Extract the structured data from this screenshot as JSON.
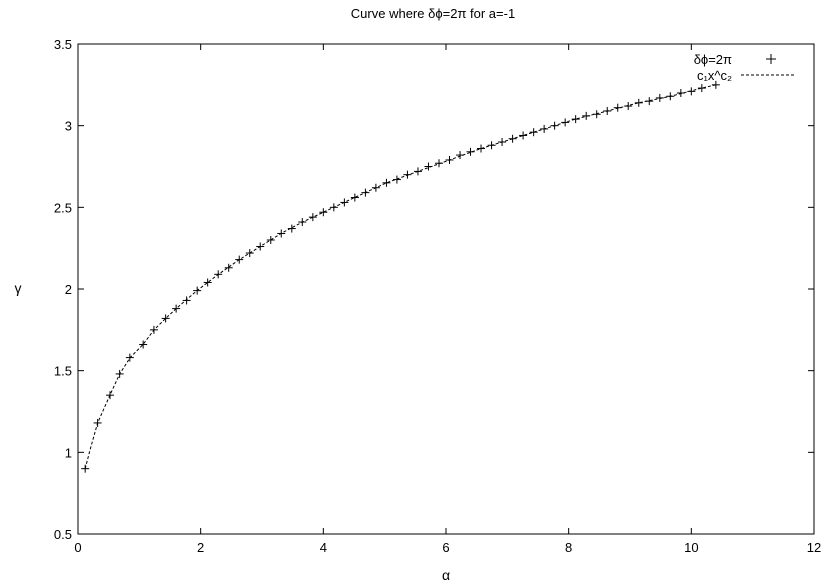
{
  "chart_data": {
    "type": "scatter",
    "title": "Curve where δϕ=2π for a=-1",
    "xlabel": "α",
    "ylabel": "γ",
    "xlim": [
      0,
      12
    ],
    "ylim": [
      0.5,
      3.5
    ],
    "xticks": [
      0,
      2,
      4,
      6,
      8,
      10,
      12
    ],
    "yticks": [
      0.5,
      1,
      1.5,
      2,
      2.5,
      3,
      3.5
    ],
    "grid": false,
    "legend_position": "top-right",
    "series": [
      {
        "name": "δϕ=2π",
        "style": "points-plus",
        "x": [
          0.117,
          0.32,
          0.522,
          0.679,
          0.845,
          1.062,
          1.238,
          1.429,
          1.6,
          1.771,
          1.943,
          2.114,
          2.286,
          2.457,
          2.629,
          2.8,
          2.971,
          3.143,
          3.314,
          3.486,
          3.657,
          3.829,
          4.0,
          4.171,
          4.343,
          4.514,
          4.686,
          4.857,
          5.029,
          5.2,
          5.371,
          5.543,
          5.714,
          5.886,
          6.057,
          6.229,
          6.4,
          6.571,
          6.743,
          6.914,
          7.086,
          7.257,
          7.429,
          7.6,
          7.771,
          7.943,
          8.114,
          8.286,
          8.457,
          8.629,
          8.8,
          8.971,
          9.143,
          9.314,
          9.486,
          9.657,
          9.829,
          10.0,
          10.171,
          10.4
        ],
        "y": [
          0.9,
          1.18,
          1.35,
          1.48,
          1.58,
          1.66,
          1.75,
          1.82,
          1.88,
          1.93,
          1.99,
          2.04,
          2.09,
          2.13,
          2.18,
          2.22,
          2.26,
          2.3,
          2.34,
          2.37,
          2.41,
          2.44,
          2.47,
          2.5,
          2.53,
          2.56,
          2.59,
          2.62,
          2.65,
          2.67,
          2.7,
          2.72,
          2.75,
          2.77,
          2.79,
          2.82,
          2.84,
          2.86,
          2.88,
          2.9,
          2.92,
          2.94,
          2.96,
          2.98,
          3.0,
          3.02,
          3.04,
          3.06,
          3.07,
          3.09,
          3.11,
          3.12,
          3.14,
          3.15,
          3.17,
          3.18,
          3.2,
          3.21,
          3.23,
          3.25
        ]
      },
      {
        "name": "c₁x^c₂",
        "style": "dashed-line",
        "x": [
          0.117,
          0.2,
          0.32,
          0.52,
          0.68,
          0.85,
          1.06,
          1.24,
          1.43,
          1.6,
          1.94,
          2.29,
          2.63,
          2.97,
          3.31,
          3.66,
          4.0,
          4.51,
          5.03,
          5.54,
          6.06,
          6.57,
          7.09,
          7.6,
          8.11,
          8.63,
          9.14,
          9.66,
          10.17,
          10.4
        ],
        "y": [
          0.9,
          1.02,
          1.18,
          1.35,
          1.48,
          1.58,
          1.66,
          1.75,
          1.82,
          1.88,
          1.99,
          2.09,
          2.18,
          2.26,
          2.34,
          2.41,
          2.47,
          2.56,
          2.65,
          2.72,
          2.79,
          2.86,
          2.92,
          2.98,
          3.04,
          3.09,
          3.14,
          3.18,
          3.23,
          3.25
        ]
      }
    ]
  }
}
